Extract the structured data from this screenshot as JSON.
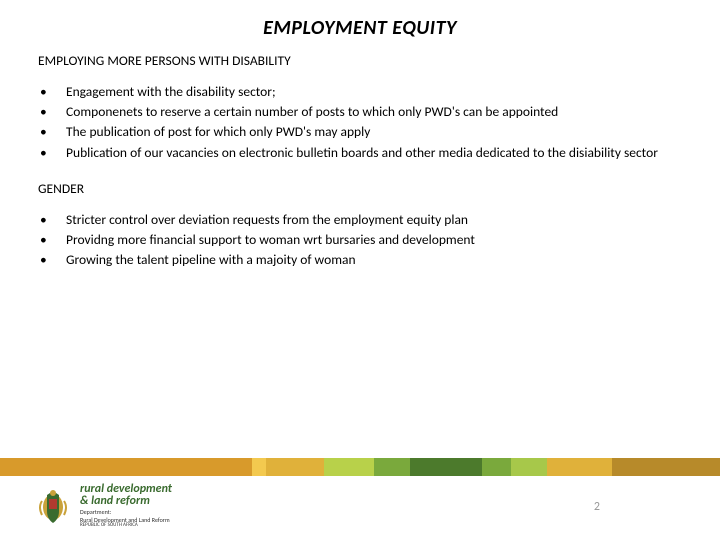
{
  "title": "EMPLOYMENT EQUITY",
  "sections": [
    {
      "heading": "EMPLOYING MORE PERSONS WITH DISABILITY",
      "items": [
        "Engagement with the disability sector;",
        "Componenets to reserve a certain number of posts to which only PWD's can be appointed",
        "The publication of post for which only PWD's may apply",
        "Publication of our vacancies on electronic bulletin boards and other media dedicated to the disiability sector"
      ]
    },
    {
      "heading": "GENDER",
      "items": [
        "Stricter control over deviation requests from the employment equity plan",
        "Providng more financial support to woman wrt bursaries and development",
        "Growing the talent pipeline with a majoity of woman"
      ]
    }
  ],
  "stripe_colors": [
    {
      "color": "#d89a2b",
      "width": 0.35
    },
    {
      "color": "#f3c94f",
      "width": 0.02
    },
    {
      "color": "#e0b13a",
      "width": 0.08
    },
    {
      "color": "#b8d14a",
      "width": 0.07
    },
    {
      "color": "#7aa93c",
      "width": 0.05
    },
    {
      "color": "#4c7a2c",
      "width": 0.1
    },
    {
      "color": "#7aa93c",
      "width": 0.04
    },
    {
      "color": "#a7c84a",
      "width": 0.05
    },
    {
      "color": "#e0b13a",
      "width": 0.09
    },
    {
      "color": "#b78a2a",
      "width": 0.15
    }
  ],
  "logo": {
    "line1": "rural development",
    "line2": "& land reform",
    "line3": "Department:",
    "line4": "Rural Development and Land Reform",
    "line5": "REPUBLIC OF SOUTH AFRICA",
    "text_color": "#3a6b2f",
    "coat_colors": {
      "gold": "#c9a23a",
      "green": "#3a6b2f",
      "red": "#b23a2f",
      "blue": "#2f4a7a",
      "black": "#222"
    }
  },
  "page_number": "2",
  "page_number_color": "#999999",
  "background_color": "#ffffff",
  "title_style": {
    "fontsize": 20,
    "weight": 700,
    "italic": true,
    "color": "#000000"
  },
  "body_style": {
    "fontsize": 13.5,
    "color": "#000000",
    "line_height": 1.35
  }
}
